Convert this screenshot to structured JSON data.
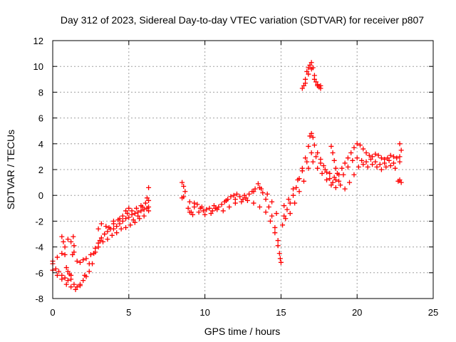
{
  "chart_data": {
    "type": "scatter",
    "title": "Day 312 of 2023, Sidereal Day-to-day VTEC variation (SDTVAR) for receiver p807",
    "xlabel": "GPS time / hours",
    "ylabel": "SDTVAR / TECUs",
    "xlim": [
      0,
      25
    ],
    "ylim": [
      -8,
      12
    ],
    "x_ticks": [
      0,
      5,
      10,
      15,
      20,
      25
    ],
    "y_ticks": [
      -8,
      -6,
      -4,
      -2,
      0,
      2,
      4,
      6,
      8,
      10,
      12
    ],
    "grid": true,
    "marker": "+",
    "series": [
      {
        "name": "SDTVAR",
        "color": "#ff0000",
        "points": [
          [
            0.0,
            -5.3
          ],
          [
            0.2,
            -5.7
          ],
          [
            0.4,
            -5.9
          ],
          [
            0.6,
            -6.2
          ],
          [
            0.8,
            -6.4
          ],
          [
            1.0,
            -6.6
          ],
          [
            1.2,
            -6.5
          ],
          [
            1.4,
            -6.9
          ],
          [
            1.6,
            -7.1
          ],
          [
            1.8,
            -6.9
          ],
          [
            2.0,
            -6.6
          ],
          [
            2.2,
            -6.3
          ],
          [
            2.4,
            -5.9
          ],
          [
            2.6,
            -5.3
          ],
          [
            2.8,
            -4.4
          ],
          [
            3.0,
            -3.7
          ],
          [
            3.2,
            -3.3
          ],
          [
            3.4,
            -3.0
          ],
          [
            3.6,
            -2.8
          ],
          [
            3.8,
            -2.6
          ],
          [
            4.0,
            -2.6
          ],
          [
            4.2,
            -2.4
          ],
          [
            4.4,
            -2.2
          ],
          [
            4.6,
            -2.0
          ],
          [
            4.8,
            -1.8
          ],
          [
            5.0,
            -1.7
          ],
          [
            5.2,
            -1.5
          ],
          [
            5.4,
            -1.4
          ],
          [
            5.6,
            -1.3
          ],
          [
            5.8,
            -1.2
          ],
          [
            6.0,
            -1.1
          ],
          [
            6.2,
            -1.0
          ],
          [
            6.3,
            -0.9
          ],
          [
            0.0,
            -5.8
          ],
          [
            0.3,
            -6.2
          ],
          [
            0.6,
            -6.5
          ],
          [
            0.9,
            -6.9
          ],
          [
            1.2,
            -7.1
          ],
          [
            1.5,
            -7.3
          ],
          [
            1.8,
            -7.0
          ],
          [
            2.1,
            -6.2
          ],
          [
            2.4,
            -5.3
          ],
          [
            2.7,
            -4.5
          ],
          [
            3.0,
            -4.0
          ],
          [
            3.3,
            -3.6
          ],
          [
            3.6,
            -3.4
          ],
          [
            3.9,
            -3.1
          ],
          [
            4.2,
            -2.9
          ],
          [
            4.5,
            -2.6
          ],
          [
            4.8,
            -2.5
          ],
          [
            5.1,
            -2.3
          ],
          [
            5.4,
            -2.1
          ],
          [
            5.7,
            -1.8
          ],
          [
            6.0,
            -1.6
          ],
          [
            6.3,
            -1.2
          ],
          [
            0.0,
            -5.1
          ],
          [
            0.3,
            -4.8
          ],
          [
            0.6,
            -4.5
          ],
          [
            0.8,
            -4.0
          ],
          [
            1.0,
            -3.4
          ],
          [
            1.2,
            -3.6
          ],
          [
            1.4,
            -4.4
          ],
          [
            1.6,
            -5.1
          ],
          [
            1.8,
            -5.2
          ],
          [
            2.0,
            -5.0
          ],
          [
            2.2,
            -4.9
          ],
          [
            2.5,
            -4.6
          ],
          [
            2.8,
            -4.1
          ],
          [
            3.1,
            -3.5
          ],
          [
            3.4,
            -3.0
          ],
          [
            3.7,
            -2.5
          ],
          [
            4.0,
            -2.2
          ],
          [
            4.3,
            -1.9
          ],
          [
            4.6,
            -1.6
          ],
          [
            4.9,
            -1.4
          ],
          [
            5.2,
            -1.2
          ],
          [
            5.5,
            -1.0
          ],
          [
            5.8,
            -0.8
          ],
          [
            6.1,
            -0.6
          ],
          [
            6.3,
            -0.4
          ],
          [
            0.6,
            -3.2
          ],
          [
            0.7,
            -3.6
          ],
          [
            0.8,
            -4.6
          ],
          [
            0.9,
            -5.6
          ],
          [
            1.0,
            -5.9
          ],
          [
            1.1,
            -6.1
          ],
          [
            1.2,
            -6.2
          ],
          [
            1.3,
            -4.6
          ],
          [
            1.4,
            -3.9
          ],
          [
            1.35,
            -3.2
          ],
          [
            3.0,
            -2.6
          ],
          [
            3.2,
            -2.2
          ],
          [
            3.5,
            -2.4
          ],
          [
            4.0,
            -2.0
          ],
          [
            4.4,
            -1.8
          ],
          [
            4.8,
            -1.2
          ],
          [
            5.0,
            -1.0
          ],
          [
            5.3,
            -1.9
          ],
          [
            5.6,
            -1.6
          ],
          [
            5.9,
            -0.9
          ],
          [
            6.2,
            -0.2
          ],
          [
            6.3,
            0.6
          ],
          [
            8.5,
            1.0
          ],
          [
            8.6,
            0.7
          ],
          [
            8.7,
            0.3
          ],
          [
            8.5,
            -0.2
          ],
          [
            8.6,
            -0.1
          ],
          [
            8.9,
            -1.0
          ],
          [
            9.1,
            -1.3
          ],
          [
            9.3,
            -0.9
          ],
          [
            9.5,
            -0.7
          ],
          [
            9.7,
            -1.0
          ],
          [
            9.9,
            -1.2
          ],
          [
            10.1,
            -1.1
          ],
          [
            10.3,
            -1.0
          ],
          [
            10.5,
            -1.2
          ],
          [
            10.7,
            -1.0
          ],
          [
            10.9,
            -0.9
          ],
          [
            11.1,
            -0.7
          ],
          [
            11.3,
            -0.5
          ],
          [
            11.5,
            -0.3
          ],
          [
            11.7,
            -0.1
          ],
          [
            11.9,
            0.0
          ],
          [
            12.1,
            0.1
          ],
          [
            12.3,
            -0.1
          ],
          [
            12.5,
            -0.3
          ],
          [
            12.7,
            -0.2
          ],
          [
            12.9,
            0.1
          ],
          [
            13.1,
            0.3
          ],
          [
            13.3,
            0.5
          ],
          [
            13.5,
            0.9
          ],
          [
            13.6,
            0.6
          ],
          [
            13.8,
            0.2
          ],
          [
            14.0,
            -0.3
          ],
          [
            14.2,
            -0.9
          ],
          [
            14.4,
            -1.6
          ],
          [
            14.6,
            -2.5
          ],
          [
            14.8,
            -3.5
          ],
          [
            14.9,
            -4.5
          ],
          [
            15.0,
            -5.2
          ],
          [
            9.0,
            -1.3
          ],
          [
            9.2,
            -1.5
          ],
          [
            9.6,
            -1.3
          ],
          [
            10.0,
            -1.5
          ],
          [
            10.4,
            -1.4
          ],
          [
            10.8,
            -1.1
          ],
          [
            11.2,
            -1.2
          ],
          [
            11.6,
            -0.9
          ],
          [
            12.0,
            -0.6
          ],
          [
            12.4,
            -0.5
          ],
          [
            12.8,
            -0.4
          ],
          [
            13.2,
            -0.6
          ],
          [
            13.6,
            -0.9
          ],
          [
            14.0,
            -1.3
          ],
          [
            14.3,
            -2.0
          ],
          [
            14.6,
            -2.9
          ],
          [
            14.8,
            -3.9
          ],
          [
            14.95,
            -4.9
          ],
          [
            9.0,
            -0.5
          ],
          [
            9.3,
            -0.6
          ],
          [
            9.8,
            -0.9
          ],
          [
            10.6,
            -0.8
          ],
          [
            11.4,
            -0.4
          ],
          [
            12.0,
            -0.3
          ],
          [
            12.6,
            0.0
          ],
          [
            13.2,
            0.3
          ],
          [
            13.7,
            0.5
          ],
          [
            14.1,
            0.1
          ],
          [
            14.4,
            -0.5
          ],
          [
            14.7,
            -1.4
          ],
          [
            15.1,
            -2.3
          ],
          [
            15.2,
            -1.6
          ],
          [
            15.4,
            -1.1
          ],
          [
            15.6,
            -0.6
          ],
          [
            15.8,
            0.0
          ],
          [
            16.0,
            0.6
          ],
          [
            16.2,
            1.3
          ],
          [
            16.4,
            2.1
          ],
          [
            16.6,
            2.9
          ],
          [
            16.8,
            3.8
          ],
          [
            16.9,
            4.6
          ],
          [
            17.0,
            4.8
          ],
          [
            17.1,
            4.5
          ],
          [
            17.2,
            3.9
          ],
          [
            17.4,
            3.3
          ],
          [
            17.6,
            2.8
          ],
          [
            17.8,
            2.3
          ],
          [
            18.0,
            1.8
          ],
          [
            18.2,
            1.3
          ],
          [
            18.4,
            1.0
          ],
          [
            18.6,
            1.2
          ],
          [
            18.8,
            1.6
          ],
          [
            19.0,
            2.1
          ],
          [
            19.2,
            2.5
          ],
          [
            19.4,
            2.9
          ],
          [
            19.6,
            3.3
          ],
          [
            19.8,
            3.7
          ],
          [
            20.0,
            4.0
          ],
          [
            20.2,
            3.9
          ],
          [
            20.4,
            3.6
          ],
          [
            20.6,
            3.3
          ],
          [
            20.8,
            3.1
          ],
          [
            21.0,
            3.0
          ],
          [
            21.2,
            3.2
          ],
          [
            21.4,
            3.1
          ],
          [
            21.6,
            2.9
          ],
          [
            21.8,
            2.8
          ],
          [
            22.0,
            2.9
          ],
          [
            22.2,
            3.1
          ],
          [
            22.4,
            3.0
          ],
          [
            22.6,
            2.9
          ],
          [
            22.8,
            3.0
          ],
          [
            15.2,
            -0.8
          ],
          [
            15.5,
            -0.3
          ],
          [
            15.8,
            0.5
          ],
          [
            16.1,
            1.2
          ],
          [
            16.4,
            1.9
          ],
          [
            16.7,
            2.6
          ],
          [
            17.0,
            3.3
          ],
          [
            17.3,
            3.0
          ],
          [
            17.6,
            2.5
          ],
          [
            17.9,
            2.0
          ],
          [
            18.2,
            1.7
          ],
          [
            18.5,
            1.4
          ],
          [
            18.8,
            1.1
          ],
          [
            19.1,
            1.6
          ],
          [
            19.4,
            2.2
          ],
          [
            19.7,
            2.7
          ],
          [
            20.0,
            2.9
          ],
          [
            20.3,
            2.7
          ],
          [
            20.6,
            2.6
          ],
          [
            20.9,
            2.8
          ],
          [
            21.2,
            2.6
          ],
          [
            21.5,
            2.4
          ],
          [
            21.8,
            2.5
          ],
          [
            22.1,
            2.7
          ],
          [
            22.4,
            2.5
          ],
          [
            22.8,
            2.6
          ],
          [
            15.3,
            -1.8
          ],
          [
            15.6,
            -1.4
          ],
          [
            15.9,
            -0.6
          ],
          [
            16.2,
            0.3
          ],
          [
            16.5,
            1.1
          ],
          [
            16.8,
            2.1
          ],
          [
            17.1,
            2.6
          ],
          [
            17.4,
            2.1
          ],
          [
            17.7,
            1.7
          ],
          [
            18.0,
            1.2
          ],
          [
            18.3,
            0.8
          ],
          [
            18.6,
            0.6
          ],
          [
            18.9,
            0.8
          ],
          [
            19.2,
            0.5
          ],
          [
            19.5,
            1.0
          ],
          [
            19.8,
            1.6
          ],
          [
            20.1,
            2.2
          ],
          [
            20.4,
            2.4
          ],
          [
            20.7,
            2.2
          ],
          [
            21.0,
            2.4
          ],
          [
            21.3,
            2.2
          ],
          [
            21.6,
            2.0
          ],
          [
            21.9,
            2.2
          ],
          [
            22.2,
            2.3
          ],
          [
            22.5,
            2.1
          ],
          [
            18.3,
            3.8
          ],
          [
            18.4,
            3.3
          ],
          [
            18.5,
            2.7
          ],
          [
            18.6,
            2.1
          ],
          [
            18.7,
            1.7
          ],
          [
            22.8,
            4.0
          ],
          [
            22.9,
            3.5
          ],
          [
            22.8,
            1.2
          ],
          [
            22.9,
            1.0
          ],
          [
            22.7,
            1.1
          ],
          [
            16.4,
            8.3
          ],
          [
            16.5,
            8.5
          ],
          [
            16.6,
            9.0
          ],
          [
            16.7,
            9.6
          ],
          [
            16.8,
            9.9
          ],
          [
            16.9,
            10.1
          ],
          [
            17.0,
            10.3
          ],
          [
            17.1,
            9.9
          ],
          [
            17.2,
            9.3
          ],
          [
            17.3,
            8.8
          ],
          [
            17.4,
            8.5
          ],
          [
            17.5,
            8.4
          ],
          [
            17.6,
            8.3
          ],
          [
            16.6,
            8.7
          ],
          [
            16.8,
            9.4
          ],
          [
            17.0,
            9.8
          ],
          [
            17.2,
            9.0
          ],
          [
            17.4,
            8.6
          ],
          [
            17.6,
            8.5
          ]
        ]
      }
    ]
  }
}
